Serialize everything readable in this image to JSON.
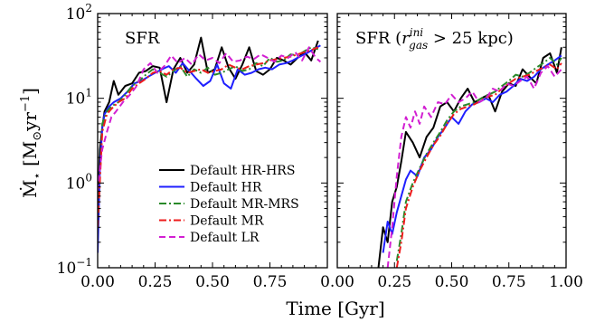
{
  "figure": {
    "xlabel": "Time [Gyr]",
    "ylabel_parts": {
      "main": "Ṁ",
      "sub": "⋆",
      "unit_open": " [M",
      "sun": "⊙",
      "unit_mid": "yr",
      "exp": "−1",
      "unit_close": "]"
    }
  },
  "chart_data": [
    {
      "type": "line",
      "title": "SFR",
      "xlim": [
        0,
        1
      ],
      "ylim": [
        0.1,
        100
      ],
      "yscale": "log",
      "x_ticks": [
        "0.00",
        "0.25",
        "0.50",
        "0.75"
      ],
      "y_ticks": [
        {
          "base": "10",
          "exp": "−1",
          "value": 0.1
        },
        {
          "base": "10",
          "exp": "0",
          "value": 1
        },
        {
          "base": "10",
          "exp": "1",
          "value": 10
        },
        {
          "base": "10",
          "exp": "2",
          "value": 100
        }
      ],
      "legend_position": "lower-right",
      "series": [
        {
          "name": "Default HR-HRS",
          "color": "#000000",
          "dash": "solid",
          "x": [
            0.0,
            0.01,
            0.02,
            0.03,
            0.05,
            0.07,
            0.09,
            0.12,
            0.15,
            0.18,
            0.21,
            0.24,
            0.27,
            0.3,
            0.33,
            0.36,
            0.39,
            0.42,
            0.45,
            0.48,
            0.51,
            0.54,
            0.57,
            0.6,
            0.63,
            0.66,
            0.69,
            0.72,
            0.75,
            0.78,
            0.81,
            0.84,
            0.87,
            0.9,
            0.93,
            0.96
          ],
          "y": [
            0.5,
            2.5,
            4.5,
            7,
            9,
            16,
            11,
            14,
            15,
            20,
            21,
            24,
            23,
            9,
            22,
            30,
            20,
            25,
            52,
            20,
            22,
            40,
            23,
            17,
            25,
            40,
            21,
            19,
            22,
            30,
            28,
            25,
            30,
            35,
            28,
            48
          ]
        },
        {
          "name": "Default HR",
          "color": "#1f1fff",
          "dash": "solid",
          "x": [
            0.0,
            0.01,
            0.02,
            0.03,
            0.05,
            0.07,
            0.1,
            0.13,
            0.16,
            0.19,
            0.22,
            0.25,
            0.28,
            0.31,
            0.34,
            0.37,
            0.4,
            0.43,
            0.46,
            0.49,
            0.52,
            0.55,
            0.58,
            0.61,
            0.64,
            0.67,
            0.7,
            0.73,
            0.76,
            0.79,
            0.82,
            0.85,
            0.88,
            0.91,
            0.94,
            0.97
          ],
          "y": [
            0.15,
            1.5,
            4.5,
            6.5,
            8,
            9,
            10,
            12,
            15,
            16,
            18,
            20,
            22,
            24,
            20,
            26,
            21,
            17,
            14,
            16,
            25,
            15,
            13,
            22,
            19,
            20,
            22,
            23,
            22,
            25,
            26,
            28,
            31,
            34,
            38,
            42
          ]
        },
        {
          "name": "Default MR-MRS",
          "color": "#2a8a2a",
          "dash": "dashdot",
          "x": [
            0.0,
            0.02,
            0.04,
            0.06,
            0.09,
            0.12,
            0.15,
            0.18,
            0.21,
            0.24,
            0.27,
            0.3,
            0.33,
            0.36,
            0.39,
            0.42,
            0.45,
            0.48,
            0.51,
            0.54,
            0.57,
            0.6,
            0.63,
            0.66,
            0.69,
            0.72,
            0.75,
            0.78,
            0.81,
            0.84,
            0.87,
            0.9,
            0.93,
            0.96
          ],
          "y": [
            0.3,
            5,
            7,
            8,
            9,
            11,
            14,
            16,
            19,
            22,
            20,
            18,
            21,
            24,
            18,
            22,
            20,
            23,
            19,
            20,
            22,
            24,
            21,
            22,
            26,
            24,
            30,
            27,
            28,
            33,
            32,
            36,
            40,
            38
          ]
        },
        {
          "name": "Default MR",
          "color": "#ee1c1c",
          "dash": "dashdot",
          "x": [
            0.0,
            0.02,
            0.04,
            0.06,
            0.09,
            0.12,
            0.15,
            0.18,
            0.21,
            0.24,
            0.27,
            0.3,
            0.33,
            0.36,
            0.39,
            0.42,
            0.45,
            0.48,
            0.51,
            0.54,
            0.57,
            0.6,
            0.63,
            0.66,
            0.69,
            0.72,
            0.75,
            0.78,
            0.81,
            0.84,
            0.87,
            0.9,
            0.93,
            0.96
          ],
          "y": [
            0.3,
            4,
            6.5,
            7.5,
            9,
            10,
            13,
            15,
            17,
            20,
            21,
            19,
            22,
            23,
            20,
            21,
            22,
            20,
            21,
            22,
            25,
            23,
            22,
            24,
            25,
            26,
            28,
            29,
            30,
            31,
            33,
            35,
            37,
            40
          ]
        },
        {
          "name": "Default LR",
          "color": "#d21fd2",
          "dash": "dashed",
          "x": [
            0.0,
            0.01,
            0.02,
            0.04,
            0.06,
            0.08,
            0.11,
            0.14,
            0.17,
            0.2,
            0.23,
            0.26,
            0.29,
            0.32,
            0.35,
            0.38,
            0.41,
            0.44,
            0.47,
            0.5,
            0.53,
            0.56,
            0.59,
            0.62,
            0.65,
            0.68,
            0.71,
            0.74,
            0.77,
            0.8,
            0.83,
            0.86,
            0.89,
            0.92,
            0.95,
            0.97
          ],
          "y": [
            0.8,
            1.5,
            2.5,
            4,
            6,
            7,
            9,
            11,
            14,
            22,
            26,
            20,
            24,
            32,
            26,
            30,
            25,
            33,
            28,
            30,
            26,
            34,
            27,
            28,
            31,
            29,
            33,
            30,
            27,
            32,
            30,
            35,
            28,
            40,
            30,
            27
          ]
        }
      ]
    },
    {
      "type": "line",
      "title_parts": {
        "text": "SFR (",
        "r": "r",
        "sup": "ini",
        "sub": "gas",
        "rest": " > 25 kpc)"
      },
      "xlim": [
        0,
        1
      ],
      "ylim": [
        0.1,
        100
      ],
      "yscale": "log",
      "x_ticks": [
        "0.00",
        "0.25",
        "0.50",
        "0.75",
        "1.00"
      ],
      "series": [
        {
          "name": "Default HR-HRS",
          "color": "#000000",
          "dash": "solid",
          "x": [
            0.18,
            0.2,
            0.22,
            0.24,
            0.26,
            0.28,
            0.3,
            0.33,
            0.36,
            0.39,
            0.42,
            0.45,
            0.48,
            0.51,
            0.54,
            0.57,
            0.6,
            0.63,
            0.66,
            0.69,
            0.72,
            0.75,
            0.78,
            0.81,
            0.84,
            0.87,
            0.9,
            0.93,
            0.96,
            0.98
          ],
          "y": [
            0.1,
            0.3,
            0.2,
            0.6,
            0.9,
            1.8,
            4,
            3,
            2,
            3.5,
            4.5,
            8,
            9,
            7,
            10,
            13,
            9,
            10,
            11,
            7,
            12,
            15,
            14,
            22,
            18,
            15,
            30,
            34,
            20,
            40
          ]
        },
        {
          "name": "Default HR",
          "color": "#1f1fff",
          "dash": "solid",
          "x": [
            0.2,
            0.22,
            0.24,
            0.26,
            0.28,
            0.3,
            0.32,
            0.35,
            0.38,
            0.41,
            0.44,
            0.47,
            0.5,
            0.53,
            0.56,
            0.59,
            0.62,
            0.65,
            0.68,
            0.71,
            0.74,
            0.77,
            0.8,
            0.83,
            0.86,
            0.89,
            0.92,
            0.95,
            0.98
          ],
          "y": [
            0.15,
            0.35,
            0.25,
            0.45,
            0.7,
            1.1,
            1.4,
            1.2,
            2,
            2.5,
            3.5,
            4.5,
            6,
            5,
            7,
            8.5,
            9,
            10,
            9,
            11,
            12,
            14,
            17,
            16,
            18,
            22,
            25,
            28,
            32
          ]
        },
        {
          "name": "Default MR-MRS",
          "color": "#2a8a2a",
          "dash": "dashdot",
          "x": [
            0.26,
            0.28,
            0.3,
            0.33,
            0.36,
            0.39,
            0.42,
            0.45,
            0.48,
            0.51,
            0.54,
            0.57,
            0.6,
            0.63,
            0.66,
            0.69,
            0.72,
            0.75,
            0.78,
            0.81,
            0.84,
            0.87,
            0.9,
            0.93,
            0.96,
            0.98
          ],
          "y": [
            0.12,
            0.25,
            0.6,
            1.0,
            1.5,
            2.2,
            3,
            4,
            5.5,
            7,
            8,
            8.5,
            9,
            10,
            11,
            12,
            14,
            16,
            19,
            18,
            20,
            23,
            26,
            30,
            25,
            30
          ]
        },
        {
          "name": "Default MR",
          "color": "#ee1c1c",
          "dash": "dashdot",
          "x": [
            0.26,
            0.28,
            0.3,
            0.33,
            0.36,
            0.39,
            0.42,
            0.45,
            0.48,
            0.51,
            0.54,
            0.57,
            0.6,
            0.63,
            0.66,
            0.69,
            0.72,
            0.75,
            0.78,
            0.81,
            0.84,
            0.87,
            0.9,
            0.93,
            0.96,
            0.98
          ],
          "y": [
            0.1,
            0.2,
            0.5,
            0.9,
            1.4,
            2,
            2.8,
            3.6,
            5,
            6.5,
            7.5,
            8,
            8.5,
            9.5,
            10.5,
            11,
            13,
            15,
            17,
            18,
            19,
            21,
            23,
            25,
            22,
            26
          ]
        },
        {
          "name": "Default LR",
          "color": "#d21fd2",
          "dash": "dashed",
          "x": [
            0.22,
            0.24,
            0.26,
            0.28,
            0.3,
            0.32,
            0.34,
            0.36,
            0.38,
            0.41,
            0.44,
            0.47,
            0.5,
            0.53,
            0.56,
            0.59,
            0.62,
            0.65,
            0.68,
            0.71,
            0.74,
            0.77,
            0.8,
            0.83,
            0.86,
            0.89,
            0.92,
            0.95,
            0.98
          ],
          "y": [
            0.1,
            0.3,
            1.2,
            3.5,
            6,
            4.5,
            7,
            5,
            8,
            6,
            9,
            8.5,
            11,
            9,
            10,
            12,
            9,
            10,
            13,
            12,
            15,
            14,
            16,
            18,
            13,
            20,
            24,
            18,
            22
          ]
        }
      ]
    }
  ]
}
